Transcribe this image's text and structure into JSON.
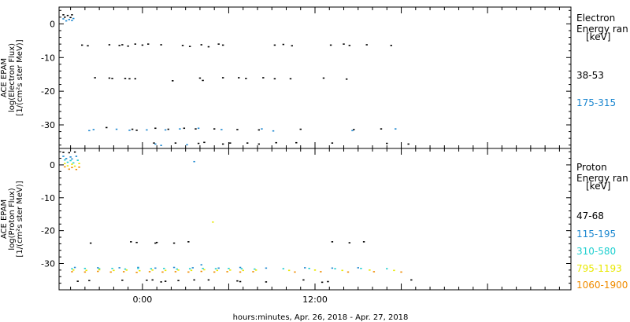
{
  "chart_data": [
    {
      "type": "scatter",
      "panel": "electron",
      "ylabel_lines": [
        "ACE EPAM",
        "log(Electron Flux)",
        "[1/(cm²s ster MeV)]"
      ],
      "ylim": [
        -37,
        5
      ],
      "yticks": [
        0,
        -10,
        -20,
        -30
      ],
      "xlim_hours": [
        -5.8,
        29.8
      ],
      "legend": {
        "title_lines": [
          "Electron",
          "Energy ran",
          "[keV]"
        ],
        "entries": [
          {
            "label": "38-53",
            "color": "#000000"
          },
          {
            "label": "175-315",
            "color": "#1e88d0"
          }
        ]
      },
      "series": [
        {
          "name": "38-53",
          "color": "#000000",
          "points": [
            [
              -5.5,
              2.7
            ],
            [
              -5.2,
              2.5
            ],
            [
              -4.9,
              2.7
            ],
            [
              -5.4,
              2.0
            ],
            [
              -5.0,
              1.9
            ],
            [
              -4.2,
              -6.3
            ],
            [
              -3.8,
              -6.5
            ],
            [
              -2.3,
              -6.2
            ],
            [
              -1.6,
              -6.4
            ],
            [
              -1.4,
              -6.2
            ],
            [
              -1.0,
              -6.6
            ],
            [
              -0.5,
              -6.0
            ],
            [
              0.0,
              -6.3
            ],
            [
              0.4,
              -6.0
            ],
            [
              1.3,
              -6.2
            ],
            [
              2.8,
              -6.4
            ],
            [
              3.3,
              -6.7
            ],
            [
              4.1,
              -6.2
            ],
            [
              4.6,
              -6.8
            ],
            [
              5.3,
              -6.0
            ],
            [
              5.6,
              -6.3
            ],
            [
              9.2,
              -6.3
            ],
            [
              9.8,
              -6.1
            ],
            [
              10.4,
              -6.5
            ],
            [
              13.1,
              -6.3
            ],
            [
              14.0,
              -6.0
            ],
            [
              14.4,
              -6.4
            ],
            [
              15.6,
              -6.2
            ],
            [
              17.3,
              -6.4
            ],
            [
              -3.3,
              -16.0
            ],
            [
              -2.3,
              -16.1
            ],
            [
              -2.1,
              -16.2
            ],
            [
              -1.2,
              -16.2
            ],
            [
              -0.9,
              -16.3
            ],
            [
              -0.5,
              -16.3
            ],
            [
              2.1,
              -16.9
            ],
            [
              4.0,
              -16.1
            ],
            [
              4.2,
              -16.8
            ],
            [
              5.6,
              -16.0
            ],
            [
              6.7,
              -16.0
            ],
            [
              7.2,
              -16.2
            ],
            [
              8.4,
              -16.0
            ],
            [
              9.2,
              -16.3
            ],
            [
              10.3,
              -16.3
            ],
            [
              12.6,
              -16.1
            ],
            [
              14.2,
              -16.4
            ],
            [
              -2.5,
              -30.8
            ],
            [
              -0.7,
              -31.3
            ],
            [
              -0.4,
              -31.6
            ],
            [
              0.9,
              -31.0
            ],
            [
              1.8,
              -31.3
            ],
            [
              2.9,
              -31.0
            ],
            [
              3.7,
              -31.2
            ],
            [
              5.0,
              -31.2
            ],
            [
              6.6,
              -31.4
            ],
            [
              8.1,
              -31.5
            ],
            [
              11.0,
              -31.3
            ],
            [
              14.7,
              -31.4
            ],
            [
              16.6,
              -31.2
            ],
            [
              0.8,
              -35.4
            ],
            [
              2.3,
              -35.4
            ],
            [
              3.9,
              -35.5
            ],
            [
              4.3,
              -35.2
            ],
            [
              5.6,
              -35.7
            ],
            [
              6.1,
              -35.4
            ],
            [
              7.3,
              -35.4
            ],
            [
              8.1,
              -35.7
            ],
            [
              9.3,
              -35.3
            ],
            [
              10.7,
              -35.3
            ],
            [
              13.2,
              -35.4
            ],
            [
              17.0,
              -35.5
            ],
            [
              18.5,
              -35.7
            ]
          ]
        },
        {
          "name": "175-315",
          "color": "#1e88d0",
          "points": [
            [
              -5.5,
              1.5
            ],
            [
              -5.1,
              1.3
            ],
            [
              -4.8,
              1.6
            ],
            [
              -5.3,
              0.9
            ],
            [
              -4.9,
              1.0
            ],
            [
              -3.7,
              -31.7
            ],
            [
              -3.4,
              -31.4
            ],
            [
              -1.8,
              -31.3
            ],
            [
              -0.9,
              -31.6
            ],
            [
              0.3,
              -31.5
            ],
            [
              1.6,
              -31.5
            ],
            [
              2.6,
              -31.2
            ],
            [
              3.9,
              -31.0
            ],
            [
              5.5,
              -31.4
            ],
            [
              8.3,
              -31.2
            ],
            [
              9.1,
              -31.8
            ],
            [
              14.6,
              -31.7
            ],
            [
              17.6,
              -31.2
            ],
            [
              0.9,
              -35.7
            ],
            [
              1.3,
              -36.1
            ],
            [
              3.1,
              -35.9
            ]
          ]
        }
      ]
    },
    {
      "type": "scatter",
      "panel": "proton",
      "ylabel_lines": [
        "ACE EPAM",
        "log(Proton Flux)",
        "[1/(cm²s ster MeV)]"
      ],
      "ylim": [
        -38,
        5
      ],
      "yticks": [
        0,
        -10,
        -20,
        -30
      ],
      "xlim_hours": [
        -5.8,
        29.8
      ],
      "xticks": [
        {
          "hour": 0,
          "label": "0:00"
        },
        {
          "hour": 12,
          "label": "12:00"
        }
      ],
      "xlabel": "hours:minutes, Apr. 26, 2018 - Apr. 27, 2018",
      "legend": {
        "title_lines": [
          "Proton",
          "Energy ran",
          "[keV]"
        ],
        "entries": [
          {
            "label": "47-68",
            "color": "#000000"
          },
          {
            "label": "115-195",
            "color": "#1e88d0"
          },
          {
            "label": "310-580",
            "color": "#1ecfcf"
          },
          {
            "label": "795-1193",
            "color": "#e8e800"
          },
          {
            "label": "1060-1900",
            "color": "#f08c00"
          }
        ]
      },
      "series": [
        {
          "name": "47-68",
          "color": "#000000",
          "points": [
            [
              -5.5,
              3.8
            ],
            [
              -5.1,
              3.7
            ],
            [
              -4.7,
              3.9
            ],
            [
              -3.6,
              -23.8
            ],
            [
              -0.8,
              -23.4
            ],
            [
              -0.4,
              -23.6
            ],
            [
              0.9,
              -23.8
            ],
            [
              1.0,
              -23.6
            ],
            [
              2.2,
              -23.8
            ],
            [
              3.2,
              -23.4
            ],
            [
              13.2,
              -23.4
            ],
            [
              14.4,
              -23.7
            ],
            [
              15.4,
              -23.4
            ],
            [
              -4.5,
              -35.4
            ],
            [
              -3.7,
              -35.2
            ],
            [
              -1.4,
              -35.1
            ],
            [
              0.3,
              -35.1
            ],
            [
              0.7,
              -35.0
            ],
            [
              1.3,
              -35.6
            ],
            [
              1.6,
              -35.4
            ],
            [
              2.5,
              -35.2
            ],
            [
              3.6,
              -35.0
            ],
            [
              4.6,
              -35.0
            ],
            [
              6.6,
              -35.3
            ],
            [
              6.8,
              -35.5
            ],
            [
              8.6,
              -35.6
            ],
            [
              11.2,
              -35.0
            ],
            [
              12.5,
              -35.7
            ],
            [
              12.9,
              -35.5
            ],
            [
              18.7,
              -35.0
            ]
          ]
        },
        {
          "name": "115-195",
          "color": "#1e88d0",
          "points": [
            [
              -5.5,
              2.6
            ],
            [
              -5.0,
              2.4
            ],
            [
              -4.6,
              2.6
            ],
            [
              -5.3,
              1.9
            ],
            [
              -4.9,
              1.8
            ],
            [
              3.6,
              1.0
            ],
            [
              4.1,
              -30.4
            ],
            [
              -4.7,
              -31.2
            ],
            [
              -3.1,
              -31.3
            ],
            [
              -1.6,
              -31.3
            ],
            [
              -0.3,
              -31.2
            ],
            [
              0.9,
              -31.4
            ],
            [
              2.2,
              -31.2
            ],
            [
              3.5,
              -31.3
            ],
            [
              5.3,
              -31.4
            ],
            [
              6.8,
              -31.2
            ],
            [
              8.6,
              -31.4
            ],
            [
              11.3,
              -31.3
            ],
            [
              13.2,
              -31.4
            ],
            [
              15.0,
              -31.3
            ]
          ]
        },
        {
          "name": "310-580",
          "color": "#1ecfcf",
          "points": [
            [
              -5.4,
              1.5
            ],
            [
              -5.0,
              1.3
            ],
            [
              -4.5,
              1.4
            ],
            [
              -5.2,
              0.8
            ],
            [
              -4.8,
              0.6
            ],
            [
              -4.9,
              -31.6
            ],
            [
              -4.0,
              -31.5
            ],
            [
              -3.0,
              -31.6
            ],
            [
              -2.1,
              -31.5
            ],
            [
              -1.2,
              -31.7
            ],
            [
              -0.3,
              -31.5
            ],
            [
              0.6,
              -31.6
            ],
            [
              1.5,
              -31.5
            ],
            [
              2.4,
              -31.7
            ],
            [
              3.3,
              -31.6
            ],
            [
              4.2,
              -31.5
            ],
            [
              5.1,
              -31.6
            ],
            [
              6.0,
              -31.5
            ],
            [
              6.9,
              -31.6
            ],
            [
              7.8,
              -31.7
            ],
            [
              9.8,
              -31.6
            ],
            [
              11.6,
              -31.5
            ],
            [
              13.4,
              -31.6
            ],
            [
              15.2,
              -31.5
            ],
            [
              17.0,
              -31.6
            ]
          ]
        },
        {
          "name": "795-1193",
          "color": "#e8e800",
          "points": [
            [
              -5.4,
              0.4
            ],
            [
              -4.9,
              0.2
            ],
            [
              -4.4,
              0.4
            ],
            [
              -5.2,
              -0.3
            ],
            [
              -4.7,
              -0.4
            ],
            [
              4.9,
              -17.4
            ],
            [
              -4.8,
              -32.0
            ],
            [
              -3.9,
              -32.1
            ],
            [
              -3.0,
              -31.9
            ],
            [
              -2.0,
              -32.1
            ],
            [
              -1.1,
              -32.0
            ],
            [
              -0.2,
              -32.2
            ],
            [
              0.7,
              -32.0
            ],
            [
              1.6,
              -32.1
            ],
            [
              2.5,
              -32.0
            ],
            [
              3.4,
              -32.1
            ],
            [
              4.3,
              -31.9
            ],
            [
              5.2,
              -32.1
            ],
            [
              6.1,
              -32.0
            ],
            [
              7.0,
              -32.1
            ],
            [
              7.9,
              -32.0
            ],
            [
              10.2,
              -32.1
            ],
            [
              12.0,
              -32.0
            ],
            [
              13.9,
              -32.1
            ],
            [
              15.8,
              -32.0
            ],
            [
              17.5,
              -32.1
            ]
          ]
        },
        {
          "name": "1060-1900",
          "color": "#f08c00",
          "points": [
            [
              -5.4,
              -0.6
            ],
            [
              -4.9,
              -0.8
            ],
            [
              -4.4,
              -0.7
            ],
            [
              -5.1,
              -1.3
            ],
            [
              -4.6,
              -1.4
            ],
            [
              -4.9,
              -32.5
            ],
            [
              -4.0,
              -32.6
            ],
            [
              -3.1,
              -32.4
            ],
            [
              -2.2,
              -32.6
            ],
            [
              -1.3,
              -32.5
            ],
            [
              -0.4,
              -32.7
            ],
            [
              0.5,
              -32.5
            ],
            [
              1.4,
              -32.6
            ],
            [
              2.3,
              -32.5
            ],
            [
              3.2,
              -32.6
            ],
            [
              4.1,
              -32.4
            ],
            [
              5.0,
              -32.6
            ],
            [
              5.9,
              -32.5
            ],
            [
              6.8,
              -32.6
            ],
            [
              7.7,
              -32.5
            ],
            [
              10.6,
              -32.6
            ],
            [
              12.4,
              -32.5
            ],
            [
              14.3,
              -32.6
            ],
            [
              16.1,
              -32.5
            ],
            [
              18.0,
              -32.6
            ]
          ]
        }
      ]
    }
  ]
}
